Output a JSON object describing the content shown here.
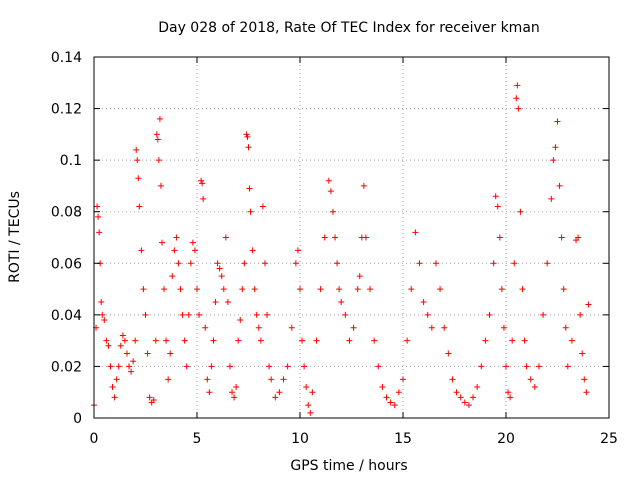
{
  "chart_data": {
    "type": "scatter",
    "title": "Day 028 of 2018, Rate Of TEC Index for receiver kman",
    "xlabel": "GPS time / hours",
    "ylabel": "ROTI / TECUs",
    "xlim": [
      0,
      25
    ],
    "ylim": [
      0,
      0.14
    ],
    "xticks": [
      0,
      5,
      10,
      15,
      20,
      25
    ],
    "xtick_labels": [
      "0",
      "5",
      "10",
      "15",
      "20",
      "25"
    ],
    "yticks": [
      0,
      0.02,
      0.04,
      0.06,
      0.08,
      0.1,
      0.12,
      0.14
    ],
    "ytick_labels": [
      "0",
      "0.02",
      "0.04",
      "0.06",
      "0.08",
      "0.1",
      "0.12",
      "0.14"
    ],
    "grid": true,
    "marker": "+",
    "color": "#ff0000",
    "series": [
      {
        "name": "ROTI",
        "points": [
          [
            0.0,
            0.005
          ],
          [
            0.1,
            0.035
          ],
          [
            0.15,
            0.082
          ],
          [
            0.2,
            0.078
          ],
          [
            0.25,
            0.072
          ],
          [
            0.3,
            0.06
          ],
          [
            0.35,
            0.045
          ],
          [
            0.4,
            0.04
          ],
          [
            0.5,
            0.038
          ],
          [
            0.6,
            0.03
          ],
          [
            0.7,
            0.028
          ],
          [
            0.8,
            0.02
          ],
          [
            0.9,
            0.012
          ],
          [
            1.0,
            0.008
          ],
          [
            1.1,
            0.015
          ],
          [
            1.2,
            0.02
          ],
          [
            1.3,
            0.028
          ],
          [
            1.4,
            0.032
          ],
          [
            1.5,
            0.03
          ],
          [
            1.6,
            0.025
          ],
          [
            1.7,
            0.02
          ],
          [
            1.8,
            0.018
          ],
          [
            1.9,
            0.022
          ],
          [
            2.0,
            0.03
          ],
          [
            2.05,
            0.104
          ],
          [
            2.1,
            0.1
          ],
          [
            2.15,
            0.093
          ],
          [
            2.2,
            0.082
          ],
          [
            2.3,
            0.065
          ],
          [
            2.4,
            0.05
          ],
          [
            2.5,
            0.04
          ],
          [
            2.6,
            0.025
          ],
          [
            2.7,
            0.008
          ],
          [
            2.8,
            0.006
          ],
          [
            2.9,
            0.007
          ],
          [
            3.0,
            0.03
          ],
          [
            3.05,
            0.11
          ],
          [
            3.1,
            0.108
          ],
          [
            3.15,
            0.1
          ],
          [
            3.2,
            0.116
          ],
          [
            3.25,
            0.09
          ],
          [
            3.3,
            0.068
          ],
          [
            3.4,
            0.05
          ],
          [
            3.5,
            0.03
          ],
          [
            3.6,
            0.015
          ],
          [
            3.7,
            0.025
          ],
          [
            3.8,
            0.055
          ],
          [
            3.9,
            0.065
          ],
          [
            4.0,
            0.07
          ],
          [
            4.1,
            0.06
          ],
          [
            4.2,
            0.05
          ],
          [
            4.3,
            0.04
          ],
          [
            4.4,
            0.03
          ],
          [
            4.5,
            0.02
          ],
          [
            4.6,
            0.04
          ],
          [
            4.7,
            0.06
          ],
          [
            4.8,
            0.068
          ],
          [
            4.9,
            0.065
          ],
          [
            5.0,
            0.05
          ],
          [
            5.1,
            0.04
          ],
          [
            5.2,
            0.092
          ],
          [
            5.25,
            0.091
          ],
          [
            5.3,
            0.085
          ],
          [
            5.4,
            0.035
          ],
          [
            5.5,
            0.015
          ],
          [
            5.6,
            0.01
          ],
          [
            5.7,
            0.02
          ],
          [
            5.8,
            0.03
          ],
          [
            5.9,
            0.045
          ],
          [
            6.0,
            0.06
          ],
          [
            6.1,
            0.058
          ],
          [
            6.2,
            0.055
          ],
          [
            6.3,
            0.05
          ],
          [
            6.4,
            0.07
          ],
          [
            6.5,
            0.045
          ],
          [
            6.6,
            0.02
          ],
          [
            6.7,
            0.01
          ],
          [
            6.8,
            0.008
          ],
          [
            6.9,
            0.012
          ],
          [
            7.0,
            0.03
          ],
          [
            7.1,
            0.038
          ],
          [
            7.2,
            0.05
          ],
          [
            7.3,
            0.06
          ],
          [
            7.4,
            0.11
          ],
          [
            7.45,
            0.109
          ],
          [
            7.5,
            0.105
          ],
          [
            7.55,
            0.089
          ],
          [
            7.6,
            0.08
          ],
          [
            7.7,
            0.065
          ],
          [
            7.8,
            0.05
          ],
          [
            7.9,
            0.04
          ],
          [
            8.0,
            0.035
          ],
          [
            8.1,
            0.03
          ],
          [
            8.2,
            0.082
          ],
          [
            8.3,
            0.06
          ],
          [
            8.4,
            0.04
          ],
          [
            8.5,
            0.02
          ],
          [
            8.6,
            0.015
          ],
          [
            8.8,
            0.008
          ],
          [
            9.0,
            0.01
          ],
          [
            9.2,
            0.015
          ],
          [
            9.4,
            0.02
          ],
          [
            9.6,
            0.035
          ],
          [
            9.8,
            0.06
          ],
          [
            9.9,
            0.065
          ],
          [
            10.0,
            0.05
          ],
          [
            10.1,
            0.03
          ],
          [
            10.2,
            0.02
          ],
          [
            10.3,
            0.012
          ],
          [
            10.4,
            0.005
          ],
          [
            10.5,
            0.002
          ],
          [
            10.6,
            0.01
          ],
          [
            10.8,
            0.03
          ],
          [
            11.0,
            0.05
          ],
          [
            11.2,
            0.07
          ],
          [
            11.4,
            0.092
          ],
          [
            11.5,
            0.088
          ],
          [
            11.6,
            0.08
          ],
          [
            11.7,
            0.07
          ],
          [
            11.8,
            0.06
          ],
          [
            11.9,
            0.05
          ],
          [
            12.0,
            0.045
          ],
          [
            12.2,
            0.04
          ],
          [
            12.4,
            0.03
          ],
          [
            12.6,
            0.035
          ],
          [
            12.8,
            0.05
          ],
          [
            12.9,
            0.055
          ],
          [
            13.0,
            0.07
          ],
          [
            13.1,
            0.09
          ],
          [
            13.2,
            0.07
          ],
          [
            13.4,
            0.05
          ],
          [
            13.6,
            0.03
          ],
          [
            13.8,
            0.02
          ],
          [
            14.0,
            0.012
          ],
          [
            14.2,
            0.008
          ],
          [
            14.4,
            0.006
          ],
          [
            14.6,
            0.005
          ],
          [
            14.8,
            0.01
          ],
          [
            15.0,
            0.015
          ],
          [
            15.2,
            0.03
          ],
          [
            15.4,
            0.05
          ],
          [
            15.6,
            0.072
          ],
          [
            15.8,
            0.06
          ],
          [
            16.0,
            0.045
          ],
          [
            16.2,
            0.04
          ],
          [
            16.4,
            0.035
          ],
          [
            16.6,
            0.06
          ],
          [
            16.8,
            0.05
          ],
          [
            17.0,
            0.035
          ],
          [
            17.2,
            0.025
          ],
          [
            17.4,
            0.015
          ],
          [
            17.6,
            0.01
          ],
          [
            17.8,
            0.008
          ],
          [
            18.0,
            0.006
          ],
          [
            18.2,
            0.005
          ],
          [
            18.4,
            0.008
          ],
          [
            18.6,
            0.012
          ],
          [
            18.8,
            0.02
          ],
          [
            19.0,
            0.03
          ],
          [
            19.2,
            0.04
          ],
          [
            19.4,
            0.06
          ],
          [
            19.5,
            0.086
          ],
          [
            19.6,
            0.082
          ],
          [
            19.7,
            0.07
          ],
          [
            19.8,
            0.05
          ],
          [
            19.9,
            0.035
          ],
          [
            20.0,
            0.02
          ],
          [
            20.1,
            0.01
          ],
          [
            20.2,
            0.008
          ],
          [
            20.3,
            0.03
          ],
          [
            20.4,
            0.06
          ],
          [
            20.5,
            0.124
          ],
          [
            20.55,
            0.129
          ],
          [
            20.6,
            0.12
          ],
          [
            20.7,
            0.08
          ],
          [
            20.8,
            0.05
          ],
          [
            20.9,
            0.03
          ],
          [
            21.0,
            0.02
          ],
          [
            21.2,
            0.015
          ],
          [
            21.4,
            0.012
          ],
          [
            21.6,
            0.02
          ],
          [
            21.8,
            0.04
          ],
          [
            22.0,
            0.06
          ],
          [
            22.2,
            0.085
          ],
          [
            22.3,
            0.1
          ],
          [
            22.4,
            0.105
          ],
          [
            22.5,
            0.115
          ],
          [
            22.6,
            0.09
          ],
          [
            22.7,
            0.07
          ],
          [
            22.8,
            0.05
          ],
          [
            22.9,
            0.035
          ],
          [
            23.0,
            0.02
          ],
          [
            23.2,
            0.03
          ],
          [
            23.4,
            0.069
          ],
          [
            23.5,
            0.07
          ],
          [
            23.6,
            0.04
          ],
          [
            23.7,
            0.025
          ],
          [
            23.8,
            0.015
          ],
          [
            23.9,
            0.01
          ],
          [
            24.0,
            0.044
          ]
        ]
      }
    ]
  }
}
